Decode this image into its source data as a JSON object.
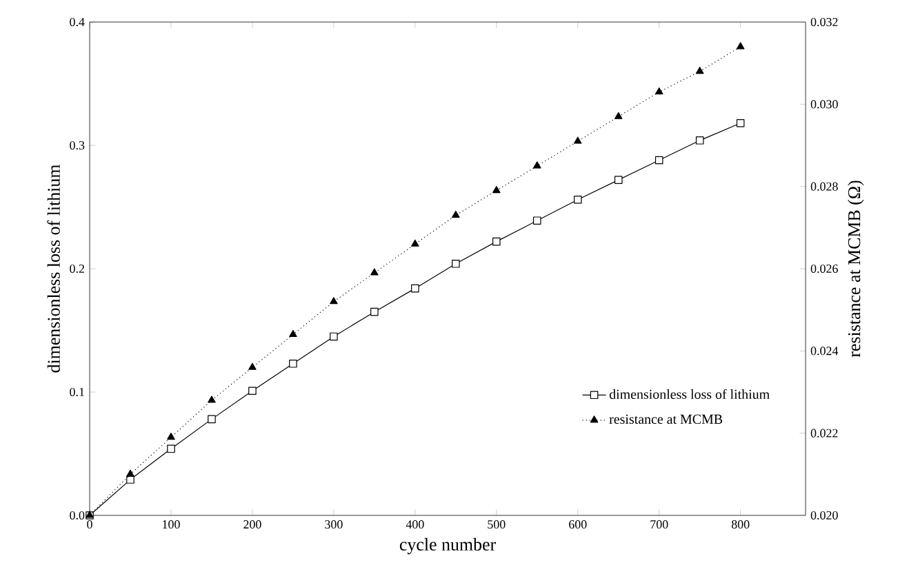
{
  "chart_data": {
    "type": "line",
    "xlabel": "cycle number",
    "ylabel": "dimensionless loss of lithium",
    "y2label": "resistance at MCMB (Ω)",
    "x": [
      0,
      50,
      100,
      150,
      200,
      250,
      300,
      350,
      400,
      450,
      500,
      550,
      600,
      650,
      700,
      750,
      800
    ],
    "series": [
      {
        "name": "dimensionless loss of lithium",
        "color": "#000000",
        "marker": "square",
        "line_style": "solid",
        "values": [
          0,
          0.029,
          0.054,
          0.078,
          0.101,
          0.123,
          0.145,
          0.165,
          0.184,
          0.204,
          0.222,
          0.239,
          0.256,
          0.272,
          0.288,
          0.304,
          0.318
        ]
      },
      {
        "name": "resistance at MCMB",
        "color": "#000000",
        "marker": "triangle",
        "line_style": "dotted",
        "axis": "y2",
        "values": [
          0.02,
          0.021,
          0.0219,
          0.0228,
          0.0236,
          0.0244,
          0.0252,
          0.0259,
          0.0266,
          0.0273,
          0.0279,
          0.0285,
          0.0291,
          0.0297,
          0.0303,
          0.0308,
          0.0314
        ]
      }
    ],
    "xlim": [
      0,
      880
    ],
    "xticks": [
      0,
      100,
      200,
      300,
      400,
      500,
      600,
      700,
      800
    ],
    "ylim": [
      0,
      0.4
    ],
    "yticks": [
      {
        "value": 0,
        "label": "0.0"
      },
      0.1,
      0.2,
      0.3,
      0.4
    ],
    "y2lim": [
      0.02,
      0.032
    ],
    "y2ticks": [
      {
        "value": 0.02,
        "label": "0.020"
      },
      {
        "value": 0.022,
        "label": "0.022"
      },
      {
        "value": 0.024,
        "label": "0.024"
      },
      {
        "value": 0.026,
        "label": "0.026"
      },
      {
        "value": 0.028,
        "label": "0.028"
      },
      {
        "value": 0.03,
        "label": "0.030"
      },
      {
        "value": 0.032,
        "label": "0.032"
      }
    ],
    "legend": "bottom right",
    "grid": false
  }
}
